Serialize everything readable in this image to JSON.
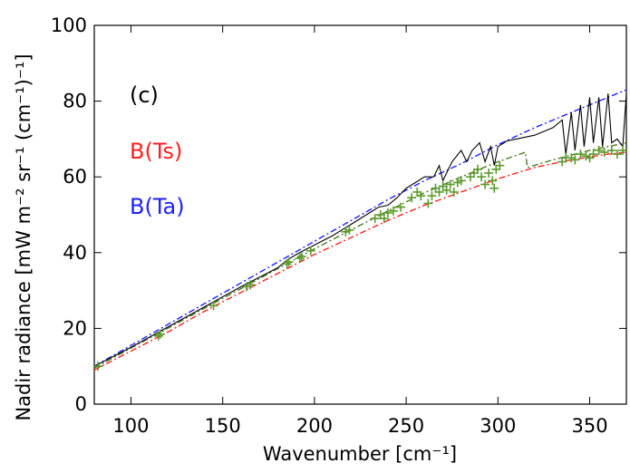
{
  "chart_data": {
    "type": "line",
    "panel_label": "(c)",
    "xlabel": "Wavenumber [cm⁻¹]",
    "ylabel": "Nadir radiance [mW m⁻² sr⁻¹ (cm⁻¹)⁻¹]",
    "xlim": [
      80,
      370
    ],
    "ylim": [
      0,
      100
    ],
    "xticks": [
      100,
      150,
      200,
      250,
      300,
      350
    ],
    "yticks": [
      0,
      20,
      40,
      60,
      80,
      100
    ],
    "grid": false,
    "legend": [
      {
        "label": "B(Ts)",
        "color": "#ff2020"
      },
      {
        "label": "B(Ta)",
        "color": "#2020ff"
      }
    ],
    "series": [
      {
        "name": "B(Ta)",
        "style": "dash-dot",
        "color": "#2020ff",
        "x": [
          80,
          100,
          120,
          140,
          160,
          180,
          200,
          220,
          240,
          260,
          280,
          300,
          320,
          340,
          360,
          370
        ],
        "y": [
          10,
          15.5,
          21,
          26.5,
          32,
          37.5,
          43,
          48.5,
          54,
          59,
          63.5,
          68.5,
          73,
          77,
          81,
          83
        ]
      },
      {
        "name": "B(Ts)",
        "style": "dash-dot",
        "color": "#ff2020",
        "x": [
          80,
          100,
          120,
          140,
          160,
          180,
          200,
          220,
          240,
          260,
          280,
          300,
          320,
          340,
          360,
          370
        ],
        "y": [
          9,
          14,
          19,
          24.5,
          29.5,
          34.5,
          39.5,
          44,
          48.5,
          52.5,
          56,
          59.5,
          62.5,
          64.5,
          66,
          66.5
        ]
      },
      {
        "style": "dash-dot",
        "color": "#4a7a20",
        "x": [
          80,
          100,
          120,
          140,
          160,
          180,
          200,
          220,
          240,
          260,
          280,
          300,
          315,
          316,
          330,
          350,
          370
        ],
        "y": [
          9.5,
          14.8,
          20,
          25.3,
          30.5,
          35.8,
          41,
          46,
          51,
          55.8,
          60,
          64,
          66.5,
          62.5,
          64.5,
          67,
          69
        ]
      },
      {
        "style": "solid",
        "color": "#000000",
        "x": [
          80,
          100,
          115,
          130,
          145,
          160,
          170,
          180,
          185,
          190,
          200,
          210,
          215,
          220,
          230,
          235,
          240,
          245,
          250,
          255,
          260,
          265,
          268,
          270,
          275,
          280,
          283,
          286,
          290,
          293,
          296,
          298,
          300,
          305,
          310,
          315,
          320,
          330,
          335,
          337,
          340,
          342,
          345,
          347,
          350,
          352,
          355,
          357,
          360,
          362,
          365,
          368,
          370
        ],
        "y": [
          10,
          15,
          19,
          23,
          27,
          31,
          33.5,
          36,
          38,
          39.5,
          42,
          44.5,
          46,
          47.5,
          50.5,
          52,
          52.5,
          54.5,
          57,
          58.5,
          60,
          60,
          63,
          59,
          64,
          67,
          64,
          67,
          69,
          64,
          68,
          63,
          68,
          69.5,
          70,
          70.5,
          71,
          73,
          75,
          66,
          77,
          67,
          79,
          68,
          81,
          69,
          81,
          68,
          82,
          69,
          70,
          68,
          82
        ]
      }
    ],
    "scatter": {
      "marker": "+",
      "color": "#5a9a2a",
      "x": [
        82,
        115,
        116,
        145,
        163,
        165,
        185,
        186,
        192,
        193,
        198,
        217,
        219,
        233,
        236,
        238,
        240,
        243,
        247,
        253,
        256,
        258,
        262,
        264,
        266,
        268,
        270,
        272,
        274,
        276,
        278,
        280,
        285,
        287,
        289,
        291,
        293,
        295,
        297,
        298,
        299,
        301,
        335,
        337,
        340,
        342,
        345,
        348,
        350,
        352,
        355,
        358,
        362,
        365,
        368
      ],
      "y": [
        10,
        18,
        18.5,
        26,
        31,
        31.5,
        37,
        37.5,
        38.5,
        39,
        40.5,
        45.5,
        46,
        49,
        50,
        49,
        50.5,
        51,
        52,
        54.5,
        56,
        55,
        53,
        55,
        57,
        56,
        57.5,
        56.5,
        58,
        56,
        58.5,
        59,
        60,
        61,
        62,
        60,
        58,
        61,
        59,
        57,
        62,
        63,
        64,
        65,
        65,
        64.5,
        66,
        65.5,
        65,
        66,
        67,
        66.5,
        67,
        66,
        67
      ]
    }
  }
}
